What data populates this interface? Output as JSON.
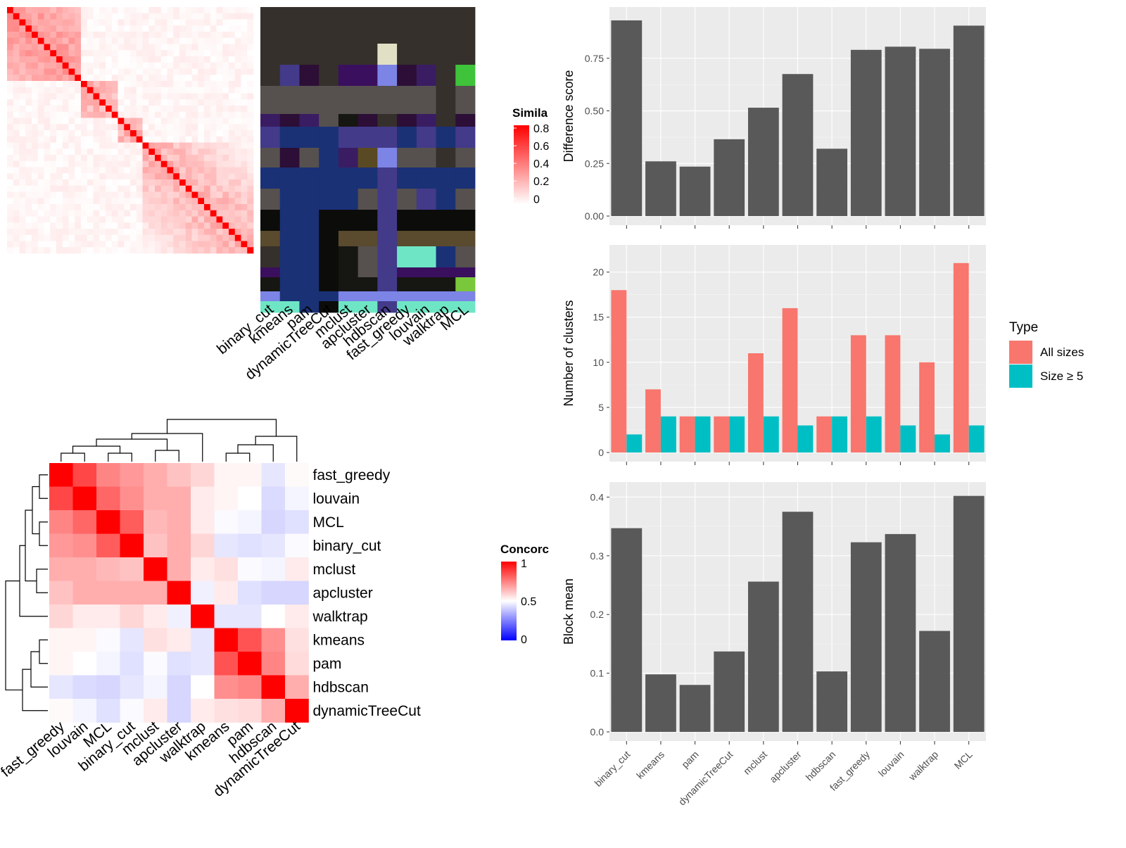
{
  "chart_data": [
    {
      "type": "heatmap",
      "id": "similarity_matrix",
      "legend": {
        "title": "Simila",
        "ticks": [
          "0.8",
          "0.6",
          "0.4",
          "0.2",
          "0"
        ],
        "colors": [
          "#ffffff",
          "#ff0000"
        ]
      }
    },
    {
      "type": "heatmap",
      "id": "cluster_assignments",
      "columns": [
        "binary_cut",
        "kmeans",
        "pam",
        "dynamicTreeCut",
        "mclust",
        "apcluster",
        "hdbscan",
        "fast_greedy",
        "louvain",
        "walktrap",
        "MCL"
      ]
    },
    {
      "type": "heatmap",
      "id": "concordance",
      "rows": [
        "fast_greedy",
        "louvain",
        "MCL",
        "binary_cut",
        "mclust",
        "apcluster",
        "walktrap",
        "kmeans",
        "pam",
        "hdbscan",
        "dynamicTreeCut"
      ],
      "columns": [
        "fast_greedy",
        "louvain",
        "MCL",
        "binary_cut",
        "mclust",
        "apcluster",
        "walktrap",
        "kmeans",
        "pam",
        "hdbscan",
        "dynamicTreeCut"
      ],
      "values": [
        [
          1.0,
          0.86,
          0.74,
          0.7,
          0.66,
          0.62,
          0.58,
          0.52,
          0.52,
          0.45,
          0.51
        ],
        [
          0.86,
          1.0,
          0.8,
          0.72,
          0.66,
          0.66,
          0.54,
          0.52,
          0.5,
          0.43,
          0.48
        ],
        [
          0.74,
          0.8,
          1.0,
          0.82,
          0.64,
          0.66,
          0.54,
          0.49,
          0.48,
          0.42,
          0.44
        ],
        [
          0.7,
          0.72,
          0.82,
          1.0,
          0.62,
          0.66,
          0.58,
          0.45,
          0.44,
          0.45,
          0.49
        ],
        [
          0.66,
          0.66,
          0.64,
          0.62,
          1.0,
          0.66,
          0.54,
          0.56,
          0.49,
          0.48,
          0.54
        ],
        [
          0.62,
          0.66,
          0.66,
          0.66,
          0.66,
          1.0,
          0.47,
          0.54,
          0.44,
          0.42,
          0.42
        ],
        [
          0.58,
          0.54,
          0.54,
          0.58,
          0.54,
          0.47,
          1.0,
          0.45,
          0.45,
          0.5,
          0.54
        ],
        [
          0.52,
          0.52,
          0.49,
          0.45,
          0.56,
          0.54,
          0.45,
          1.0,
          0.84,
          0.72,
          0.56
        ],
        [
          0.52,
          0.5,
          0.48,
          0.44,
          0.49,
          0.44,
          0.45,
          0.84,
          1.0,
          0.74,
          0.57
        ],
        [
          0.45,
          0.43,
          0.42,
          0.45,
          0.48,
          0.42,
          0.5,
          0.72,
          0.74,
          1.0,
          0.66
        ],
        [
          0.51,
          0.48,
          0.44,
          0.49,
          0.54,
          0.42,
          0.54,
          0.56,
          0.57,
          0.66,
          1.0
        ]
      ],
      "legend": {
        "title": "Concorc",
        "ticks": [
          "1",
          "0.5",
          "0"
        ],
        "colors": [
          "#0000ff",
          "#ffffff",
          "#ff0000"
        ]
      }
    },
    {
      "type": "bar",
      "id": "difference_score",
      "categories": [
        "binary_cut",
        "kmeans",
        "pam",
        "dynamicTreeCut",
        "mclust",
        "apcluster",
        "hdbscan",
        "fast_greedy",
        "louvain",
        "walktrap",
        "MCL"
      ],
      "values": [
        0.93,
        0.26,
        0.235,
        0.365,
        0.515,
        0.675,
        0.32,
        0.79,
        0.805,
        0.795,
        0.905
      ],
      "ylabel": "Difference score",
      "ylim": [
        0,
        0.95
      ],
      "yticks": [
        "0.00",
        "0.25",
        "0.50",
        "0.75"
      ],
      "bar_color": "#595959"
    },
    {
      "type": "bar",
      "id": "number_of_clusters",
      "categories": [
        "binary_cut",
        "kmeans",
        "pam",
        "dynamicTreeCut",
        "mclust",
        "apcluster",
        "hdbscan",
        "fast_greedy",
        "louvain",
        "walktrap",
        "MCL"
      ],
      "series": [
        {
          "name": "All sizes",
          "values": [
            18,
            7,
            4,
            4,
            11,
            16,
            4,
            13,
            13,
            10,
            21
          ],
          "color": "#f8766d"
        },
        {
          "name": "Size ≥ 5",
          "values": [
            2,
            4,
            4,
            4,
            4,
            3,
            4,
            4,
            3,
            2,
            3
          ],
          "color": "#00bfc4"
        }
      ],
      "ylabel": "Number of clusters",
      "ylim": [
        0,
        22
      ],
      "yticks": [
        "0",
        "5",
        "10",
        "15",
        "20"
      ],
      "legend": {
        "title": "Type",
        "position": "right"
      }
    },
    {
      "type": "bar",
      "id": "block_mean",
      "categories": [
        "binary_cut",
        "kmeans",
        "pam",
        "dynamicTreeCut",
        "mclust",
        "apcluster",
        "hdbscan",
        "fast_greedy",
        "louvain",
        "walktrap",
        "MCL"
      ],
      "values": [
        0.347,
        0.098,
        0.08,
        0.137,
        0.256,
        0.375,
        0.103,
        0.323,
        0.337,
        0.172,
        0.402
      ],
      "ylabel": "Block mean",
      "ylim": [
        0,
        0.41
      ],
      "yticks": [
        "0.0",
        "0.1",
        "0.2",
        "0.3",
        "0.4"
      ],
      "bar_color": "#595959"
    }
  ]
}
